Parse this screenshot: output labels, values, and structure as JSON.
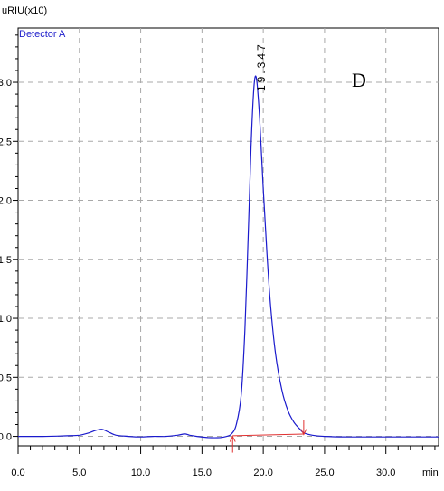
{
  "chart_data": {
    "type": "line",
    "y_unit_label": "uRIU(x10)",
    "x_unit_label": "min",
    "xlim": [
      0,
      34.3
    ],
    "ylim": [
      -0.08,
      3.46
    ],
    "x_ticks": [
      0,
      5,
      10,
      15,
      20,
      25,
      30
    ],
    "x_tick_labels": [
      "0.0",
      "5.0",
      "10.0",
      "15.0",
      "20.0",
      "25.0",
      "30.0"
    ],
    "y_ticks": [
      0,
      0.5,
      1.0,
      1.5,
      2.0,
      2.5,
      3.0
    ],
    "y_tick_labels": [
      "0.0",
      "0.5",
      "1.0",
      "1.5",
      "2.0",
      "2.5",
      "3.0"
    ],
    "grid": true,
    "series": [
      {
        "name": "Detector A",
        "color": "#1a1acc",
        "x": [
          0,
          2,
          4,
          5,
          5.8,
          6.3,
          6.8,
          7.1,
          7.5,
          8.0,
          9.0,
          10.0,
          11.0,
          12.0,
          13.0,
          13.6,
          14.0,
          14.6,
          15.5,
          16.5,
          17.0,
          17.4,
          17.8,
          18.2,
          18.5,
          18.8,
          19.0,
          19.2,
          19.35,
          19.5,
          19.7,
          20.0,
          20.3,
          20.6,
          21.0,
          21.5,
          22.0,
          22.5,
          23.0,
          23.3,
          24.0,
          25.0,
          27.0,
          30.0,
          34.3
        ],
        "y": [
          0.0,
          0.0,
          0.005,
          0.01,
          0.03,
          0.05,
          0.06,
          0.05,
          0.03,
          0.01,
          0.0,
          -0.005,
          0.0,
          0.0,
          0.01,
          0.02,
          0.01,
          0.0,
          -0.01,
          -0.01,
          0.0,
          0.02,
          0.1,
          0.35,
          0.9,
          1.8,
          2.45,
          2.9,
          3.05,
          2.98,
          2.7,
          2.1,
          1.55,
          1.1,
          0.7,
          0.4,
          0.22,
          0.12,
          0.06,
          0.03,
          0.01,
          0.0,
          -0.005,
          -0.005,
          -0.005
        ]
      }
    ],
    "peaks": [
      {
        "label": "19.347",
        "rt": 19.347,
        "height": 3.05
      }
    ],
    "baseline": {
      "color": "#e03030",
      "start": [
        17.5,
        0.005
      ],
      "end": [
        23.3,
        0.02
      ]
    },
    "integration_markers": [
      {
        "x": 17.5,
        "direction": "up"
      },
      {
        "x": 23.3,
        "direction": "down"
      }
    ],
    "panel_letter": "D"
  }
}
